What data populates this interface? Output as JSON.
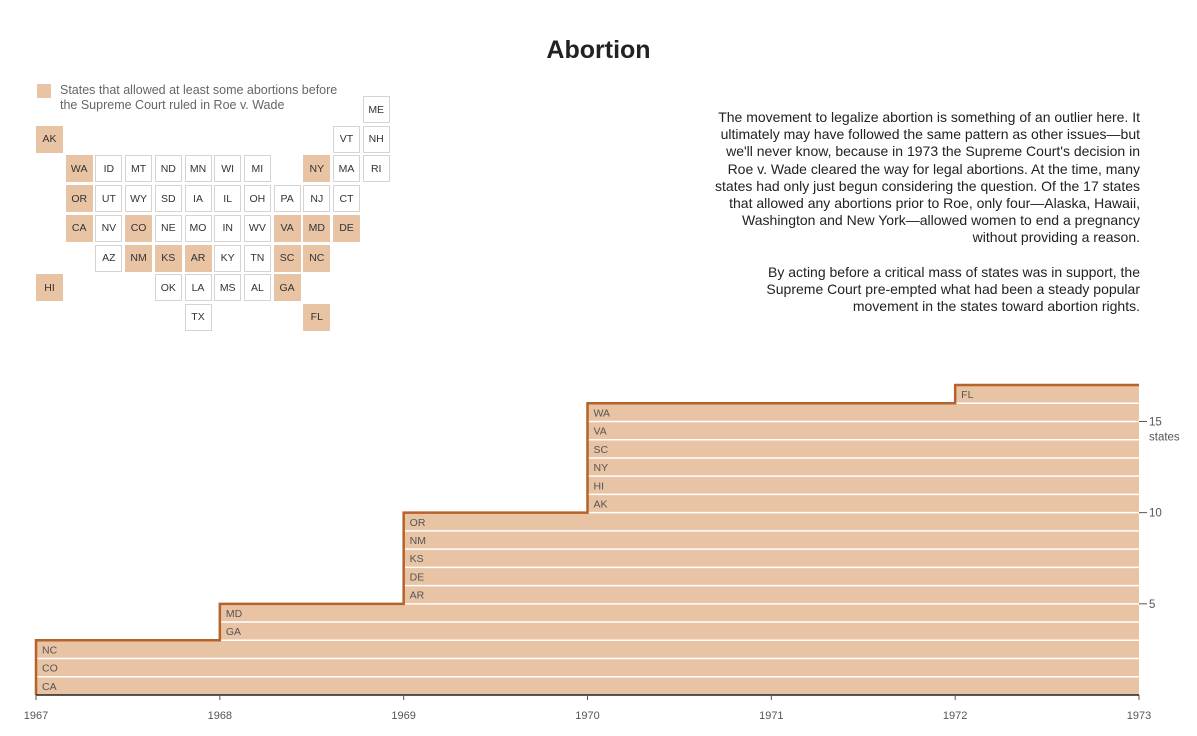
{
  "title": "Abortion",
  "legend": {
    "label": "States that allowed at least some abortions before the Supreme Court ruled in Roe v. Wade",
    "color": "#e8c3a4"
  },
  "tile_map": {
    "highlight_color": "#e8c3a4",
    "rows": [
      [
        {
          "col": 11,
          "state": "ME",
          "on": false
        }
      ],
      [
        {
          "col": 0,
          "state": "AK",
          "on": true
        },
        {
          "col": 10,
          "state": "VT",
          "on": false
        },
        {
          "col": 11,
          "state": "NH",
          "on": false
        }
      ],
      [
        {
          "col": 1,
          "state": "WA",
          "on": true
        },
        {
          "col": 2,
          "state": "ID",
          "on": false
        },
        {
          "col": 3,
          "state": "MT",
          "on": false
        },
        {
          "col": 4,
          "state": "ND",
          "on": false
        },
        {
          "col": 5,
          "state": "MN",
          "on": false
        },
        {
          "col": 6,
          "state": "WI",
          "on": false
        },
        {
          "col": 7,
          "state": "MI",
          "on": false
        },
        {
          "col": 9,
          "state": "NY",
          "on": true
        },
        {
          "col": 10,
          "state": "MA",
          "on": false
        },
        {
          "col": 11,
          "state": "RI",
          "on": false
        }
      ],
      [
        {
          "col": 1,
          "state": "OR",
          "on": true
        },
        {
          "col": 2,
          "state": "UT",
          "on": false
        },
        {
          "col": 3,
          "state": "WY",
          "on": false
        },
        {
          "col": 4,
          "state": "SD",
          "on": false
        },
        {
          "col": 5,
          "state": "IA",
          "on": false
        },
        {
          "col": 6,
          "state": "IL",
          "on": false
        },
        {
          "col": 7,
          "state": "OH",
          "on": false
        },
        {
          "col": 8,
          "state": "PA",
          "on": false
        },
        {
          "col": 9,
          "state": "NJ",
          "on": false
        },
        {
          "col": 10,
          "state": "CT",
          "on": false
        }
      ],
      [
        {
          "col": 1,
          "state": "CA",
          "on": true
        },
        {
          "col": 2,
          "state": "NV",
          "on": false
        },
        {
          "col": 3,
          "state": "CO",
          "on": true
        },
        {
          "col": 4,
          "state": "NE",
          "on": false
        },
        {
          "col": 5,
          "state": "MO",
          "on": false
        },
        {
          "col": 6,
          "state": "IN",
          "on": false
        },
        {
          "col": 7,
          "state": "WV",
          "on": false
        },
        {
          "col": 8,
          "state": "VA",
          "on": true
        },
        {
          "col": 9,
          "state": "MD",
          "on": true
        },
        {
          "col": 10,
          "state": "DE",
          "on": true
        }
      ],
      [
        {
          "col": 2,
          "state": "AZ",
          "on": false
        },
        {
          "col": 3,
          "state": "NM",
          "on": true
        },
        {
          "col": 4,
          "state": "KS",
          "on": true
        },
        {
          "col": 5,
          "state": "AR",
          "on": true
        },
        {
          "col": 6,
          "state": "KY",
          "on": false
        },
        {
          "col": 7,
          "state": "TN",
          "on": false
        },
        {
          "col": 8,
          "state": "SC",
          "on": true
        },
        {
          "col": 9,
          "state": "NC",
          "on": true
        }
      ],
      [
        {
          "col": 0,
          "state": "HI",
          "on": true
        },
        {
          "col": 4,
          "state": "OK",
          "on": false
        },
        {
          "col": 5,
          "state": "LA",
          "on": false
        },
        {
          "col": 6,
          "state": "MS",
          "on": false
        },
        {
          "col": 7,
          "state": "AL",
          "on": false
        },
        {
          "col": 8,
          "state": "GA",
          "on": true
        }
      ],
      [
        {
          "col": 5,
          "state": "TX",
          "on": false
        },
        {
          "col": 9,
          "state": "FL",
          "on": true
        }
      ]
    ]
  },
  "description": {
    "p1": "The movement to legalize abortion is something of an outlier here. It ultimately may have followed the same pattern as other issues—but we'll never know, because in 1973 the Supreme Court's decision in Roe v. Wade cleared the way for legal abortions. At the time, many states had only just begun considering the question. Of the 17 states that allowed any abortions prior to Roe, only four—Alaska, Hawaii, Washington and New York—allowed women to end a pregnancy without providing a reason.",
    "p2": "By acting before a critical mass of states was in support, the Supreme Court pre-empted what had been a steady popular movement in the states toward abortion rights."
  },
  "chart_data": {
    "type": "area",
    "fill_color": "#e8c3a4",
    "line_color": "#b5632a",
    "xlim": [
      1967,
      1973
    ],
    "ylim": [
      0,
      17
    ],
    "x_ticks": [
      "1967",
      "1968",
      "1969",
      "1970",
      "1971",
      "1972",
      "1973"
    ],
    "y_ticks": [
      5,
      10,
      15
    ],
    "y_unit": "states",
    "steps": [
      {
        "x": 1967,
        "states": [
          "CA",
          "CO",
          "NC"
        ]
      },
      {
        "x": 1968,
        "states": [
          "GA",
          "MD"
        ]
      },
      {
        "x": 1969,
        "states": [
          "AR",
          "DE",
          "KS",
          "NM",
          "OR"
        ]
      },
      {
        "x": 1970,
        "states": [
          "AK",
          "HI",
          "NY",
          "SC",
          "VA",
          "WA"
        ]
      },
      {
        "x": 1972,
        "states": [
          "FL"
        ]
      }
    ]
  }
}
